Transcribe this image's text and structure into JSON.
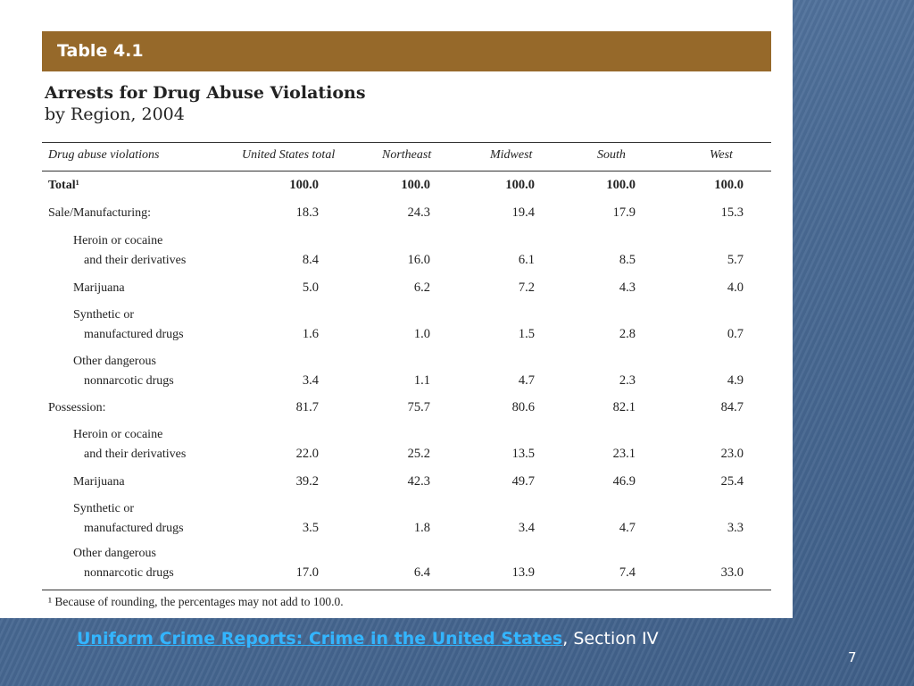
{
  "table_label": "Table 4.1",
  "title_line1": "Arrests for Drug Abuse Violations",
  "title_line2": "by Region, 2004",
  "columns": [
    "Drug abuse violations",
    "United States total",
    "Northeast",
    "Midwest",
    "South",
    "West"
  ],
  "rows": [
    {
      "label": [
        "Total¹"
      ],
      "values": [
        "100.0",
        "100.0",
        "100.0",
        "100.0",
        "100.0"
      ],
      "bold": true
    },
    {
      "label": [
        "Sale/Manufacturing:"
      ],
      "values": [
        "18.3",
        "24.3",
        "19.4",
        "17.9",
        "15.3"
      ]
    },
    {
      "label": [
        "Heroin or cocaine",
        "and their derivatives"
      ],
      "values": [
        "8.4",
        "16.0",
        "6.1",
        "8.5",
        "5.7"
      ]
    },
    {
      "label": [
        "Marijuana"
      ],
      "values": [
        "5.0",
        "6.2",
        "7.2",
        "4.3",
        "4.0"
      ]
    },
    {
      "label": [
        "Synthetic or",
        "manufactured drugs"
      ],
      "values": [
        "1.6",
        "1.0",
        "1.5",
        "2.8",
        "0.7"
      ]
    },
    {
      "label": [
        "Other dangerous",
        "nonnarcotic drugs"
      ],
      "values": [
        "3.4",
        "1.1",
        "4.7",
        "2.3",
        "4.9"
      ]
    },
    {
      "label": [
        "Possession:"
      ],
      "values": [
        "81.7",
        "75.7",
        "80.6",
        "82.1",
        "84.7"
      ]
    },
    {
      "label": [
        "Heroin or cocaine",
        "and their derivatives"
      ],
      "values": [
        "22.0",
        "25.2",
        "13.5",
        "23.1",
        "23.0"
      ]
    },
    {
      "label": [
        "Marijuana"
      ],
      "values": [
        "39.2",
        "42.3",
        "49.7",
        "46.9",
        "25.4"
      ]
    },
    {
      "label": [
        "Synthetic or",
        "manufactured drugs"
      ],
      "values": [
        "3.5",
        "1.8",
        "3.4",
        "4.7",
        "3.3"
      ]
    },
    {
      "label": [
        "Other dangerous",
        "nonnarcotic drugs"
      ],
      "values": [
        "17.0",
        "6.4",
        "13.9",
        "7.4",
        "33.0"
      ]
    }
  ],
  "footnote": "¹ Because of rounding, the percentages may not add to 100.0.",
  "source_link": "Uniform Crime Reports: Crime in the United States",
  "source_rest": ", Section IV",
  "page_number": "7",
  "colors": {
    "banner": "#96692a",
    "background": "#4d6f99",
    "link": "#33b5ff"
  }
}
